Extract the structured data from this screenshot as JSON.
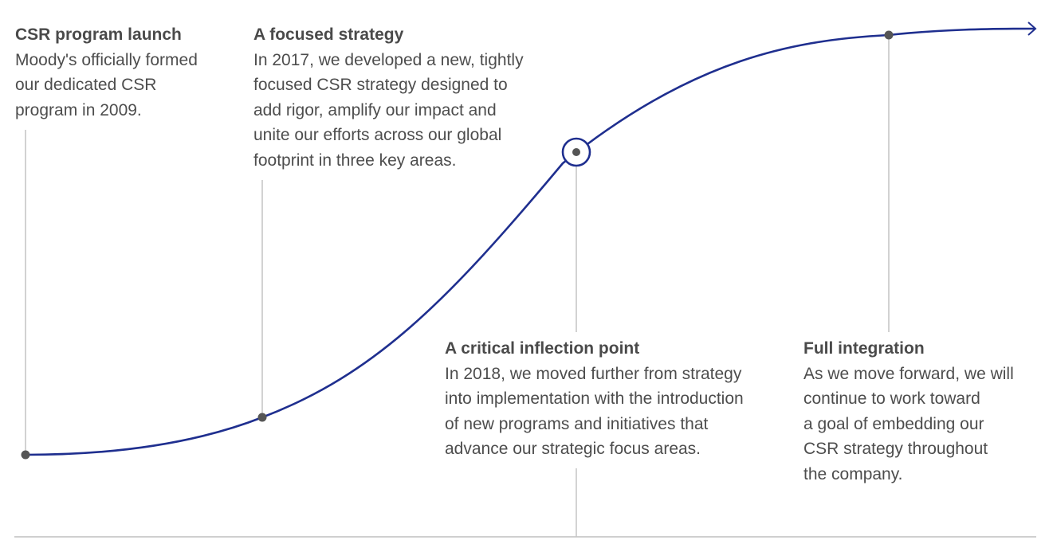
{
  "colors": {
    "curve": "#1f2f8f",
    "connector": "#c4c4c4",
    "dot": "#555555",
    "baseline": "#cfcfcf"
  },
  "milestones": [
    {
      "title": "CSR program launch",
      "body": "Moody's officially formed\nour dedicated CSR\nprogram in 2009."
    },
    {
      "title": "A focused strategy",
      "body": "In 2017, we developed a new, tightly\nfocused CSR strategy designed to\nadd rigor, amplify our impact and\nunite our efforts across our global\nfootprint in three key areas."
    },
    {
      "title": "A critical inflection point",
      "body": "In 2018, we moved further from strategy\ninto implementation with the introduction\nof new programs and initiatives that\nadvance our strategic focus areas."
    },
    {
      "title": "Full integration",
      "body": "As we move forward, we will\ncontinue to work toward\na goal of embedding our\nCSR strategy throughout\nthe company."
    }
  ]
}
